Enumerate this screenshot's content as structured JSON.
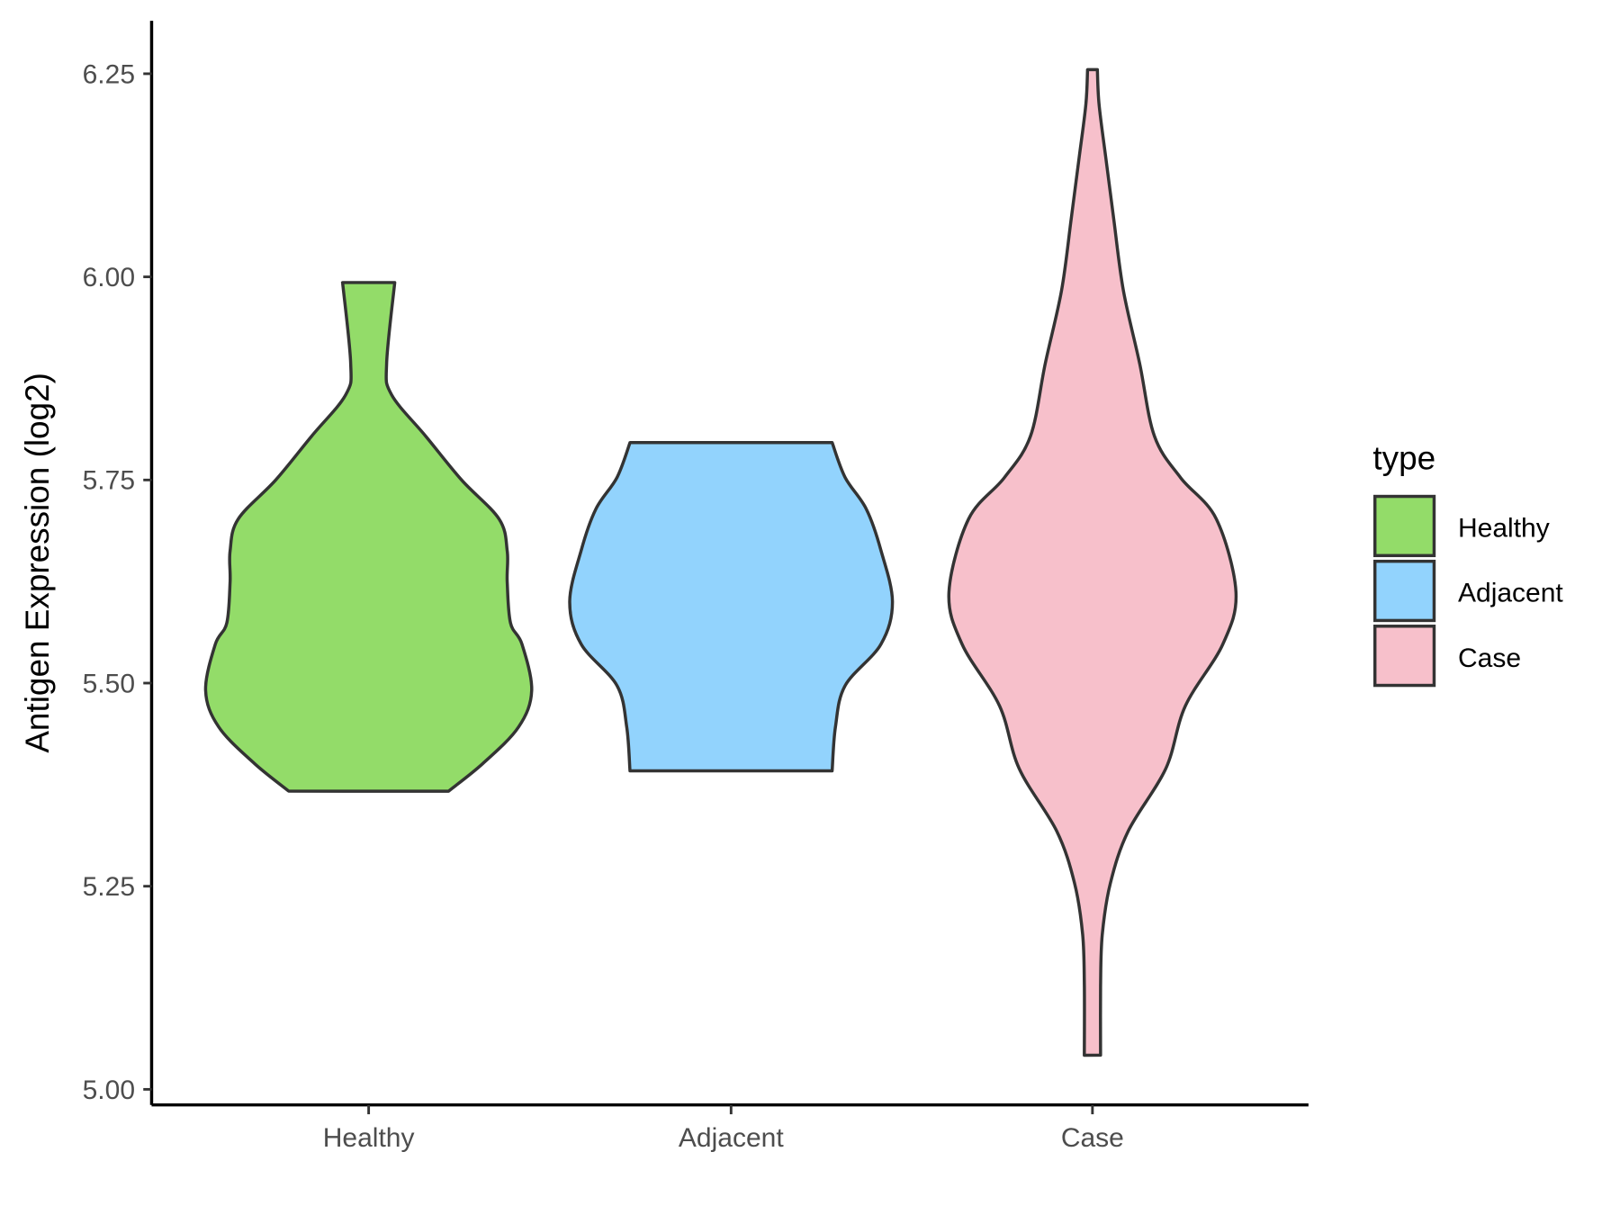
{
  "chart_data": {
    "type": "violin",
    "title": "",
    "xlabel": "",
    "ylabel": "Antigen Expression (log2)",
    "ylim": [
      5.0,
      6.3
    ],
    "yticks": [
      "5.00",
      "5.25",
      "5.50",
      "5.75",
      "6.00",
      "6.25"
    ],
    "ytick_values": [
      5.0,
      5.25,
      5.5,
      5.75,
      6.0,
      6.25
    ],
    "categories": [
      "Healthy",
      "Adjacent",
      "Case"
    ],
    "grid": false,
    "legend": {
      "title": "type",
      "position": "right",
      "entries": [
        "Healthy",
        "Adjacent",
        "Case"
      ]
    },
    "series": [
      {
        "name": "Healthy",
        "color": "#93DC69",
        "range": [
          5.367,
          5.993
        ],
        "density_profile": [
          [
            5.993,
            0.16
          ],
          [
            5.893,
            0.11
          ],
          [
            5.855,
            0.14
          ],
          [
            5.804,
            0.35
          ],
          [
            5.75,
            0.57
          ],
          [
            5.702,
            0.8
          ],
          [
            5.663,
            0.85
          ],
          [
            5.625,
            0.85
          ],
          [
            5.574,
            0.87
          ],
          [
            5.548,
            0.94
          ],
          [
            5.491,
            1.0
          ],
          [
            5.446,
            0.92
          ],
          [
            5.401,
            0.7
          ],
          [
            5.367,
            0.49
          ]
        ]
      },
      {
        "name": "Adjacent",
        "color": "#92D3FD",
        "range": [
          5.392,
          5.796
        ],
        "density_profile": [
          [
            5.796,
            0.62
          ],
          [
            5.753,
            0.7
          ],
          [
            5.714,
            0.83
          ],
          [
            5.663,
            0.92
          ],
          [
            5.6,
            0.99
          ],
          [
            5.548,
            0.92
          ],
          [
            5.497,
            0.7
          ],
          [
            5.446,
            0.64
          ],
          [
            5.392,
            0.62
          ]
        ]
      },
      {
        "name": "Case",
        "color": "#F7C0CB",
        "range": [
          5.042,
          6.255
        ],
        "density_profile": [
          [
            6.255,
            0.03
          ],
          [
            6.213,
            0.04
          ],
          [
            6.149,
            0.08
          ],
          [
            6.072,
            0.13
          ],
          [
            5.983,
            0.19
          ],
          [
            5.893,
            0.29
          ],
          [
            5.804,
            0.38
          ],
          [
            5.753,
            0.54
          ],
          [
            5.702,
            0.76
          ],
          [
            5.612,
            0.88
          ],
          [
            5.548,
            0.8
          ],
          [
            5.472,
            0.57
          ],
          [
            5.395,
            0.45
          ],
          [
            5.318,
            0.22
          ],
          [
            5.254,
            0.11
          ],
          [
            5.19,
            0.06
          ],
          [
            5.127,
            0.05
          ],
          [
            5.042,
            0.05
          ]
        ]
      }
    ]
  }
}
